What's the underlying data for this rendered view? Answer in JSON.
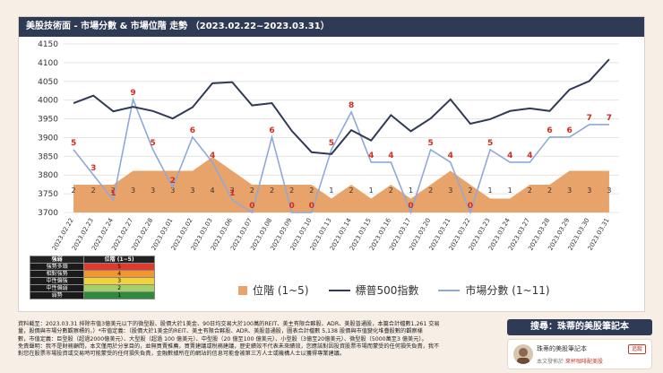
{
  "header": {
    "title": "美股技術面 - 市場分數 & 市場位階 走勢 （2023.02.22~2023.03.31）"
  },
  "chart_data": {
    "type": "line",
    "x": [
      "2023.02.22",
      "2023.02.23",
      "2023.02.24",
      "2023.02.27",
      "2023.02.28",
      "2023.03.01",
      "2023.03.02",
      "2023.03.03",
      "2023.03.06",
      "2023.03.07",
      "2023.03.08",
      "2023.03.09",
      "2023.03.10",
      "2023.03.13",
      "2023.03.14",
      "2023.03.15",
      "2023.03.16",
      "2023.03.17",
      "2023.03.20",
      "2023.03.21",
      "2023.03.22",
      "2023.03.23",
      "2023.03.24",
      "2023.03.27",
      "2023.03.28",
      "2023.03.29",
      "2023.03.30",
      "2023.03.31"
    ],
    "ylim": [
      3700,
      4150
    ],
    "yticks": [
      3700,
      3750,
      3800,
      3850,
      3900,
      3950,
      4000,
      4050,
      4100,
      4150
    ],
    "series": [
      {
        "name": "位階 (1~5)",
        "kind": "area",
        "color": "#e8a36a",
        "values": [
          2,
          2,
          2,
          3,
          3,
          3,
          3,
          4,
          3,
          2,
          2,
          2,
          2,
          1,
          2,
          1,
          2,
          1,
          2,
          3,
          2,
          1,
          1,
          2,
          2,
          3,
          3,
          3
        ]
      },
      {
        "name": "標普500指數",
        "kind": "line",
        "color": "#2f3a55",
        "values": [
          3992,
          4012,
          3970,
          3982,
          3971,
          3951,
          3981,
          4045,
          4048,
          3986,
          3992,
          3918,
          3861,
          3856,
          3920,
          3892,
          3960,
          3917,
          3951,
          4002,
          3937,
          3949,
          3971,
          3978,
          3971,
          4028,
          4051,
          4109
        ]
      },
      {
        "name": "市場分數 (1~11)",
        "kind": "line",
        "color": "#8ea9d9",
        "values": [
          5,
          3,
          1,
          9,
          5,
          2,
          6,
          4,
          1,
          0,
          6,
          0,
          0,
          5,
          8,
          4,
          4,
          0,
          5,
          4,
          0,
          5,
          4,
          4,
          6,
          6,
          7,
          7
        ]
      }
    ]
  },
  "rank_table": {
    "headers": [
      "強弱",
      "位階 (1~5)"
    ],
    "rows": [
      {
        "label": "強勢多頭",
        "value": "5",
        "color": "#e03a2b"
      },
      {
        "label": "相對強勢",
        "value": "4",
        "color": "#f0962e"
      },
      {
        "label": "中性偏強",
        "value": "3",
        "color": "#f2d23a"
      },
      {
        "label": "中性偏弱",
        "value": "2",
        "color": "#a4cf6a"
      },
      {
        "label": "弱勢",
        "value": "1",
        "color": "#2f8a3e"
      }
    ]
  },
  "legend": {
    "area_label": "位階 (1~5)",
    "line1_label": "標普500指數",
    "line2_label": "市場分數 (1~11)"
  },
  "notes": {
    "line1": "資料截至：2023.03.31 排除市值3億美元以下的微型股、股價大於1美金、90日均交易大於100萬的REIT、美主有限合夥股、ADR、美股普通股，本篇合計檔數1,261 交易",
    "line2": "量，股價與市場分數觀察標的，）*市值定義：（股價大於1美金的REIT、美主有限合夥股、ADR、美股普通股，圖表合計檔數 5,138 股價與市值變化堆疊股數的觀察樣",
    "line3": "數，市值定義：巨型股（超過2000億美元）、大型股（超過 100 億美元）、中型股（20 億至100 億美元）、小型股（3億至20億美元）、微型股（5000萬至3 億美元）。",
    "line4": "免責聲明：我不是財務顧問，本文僅用於分享目的，並無買賣推薦，買賣建議或稅務建議，歷史績效不代表未來績效，您應該對因投資股票市場而蒙受的任何損失負責，我不",
    "line5": "對您在股票市場投資或交易時可能蒙受的任何損失負責，金融數據所在的網站的信息可能會被第三方人士或機構人士以獲得專業建議。"
  },
  "brand": {
    "search_title": "搜尋：珠蒂的美股筆記本",
    "name": "珠蒂的美股筆記本",
    "follow": "追蹤",
    "sub_prefix": "本文發佈於",
    "sub_link": "來杯咖啡配美股"
  }
}
